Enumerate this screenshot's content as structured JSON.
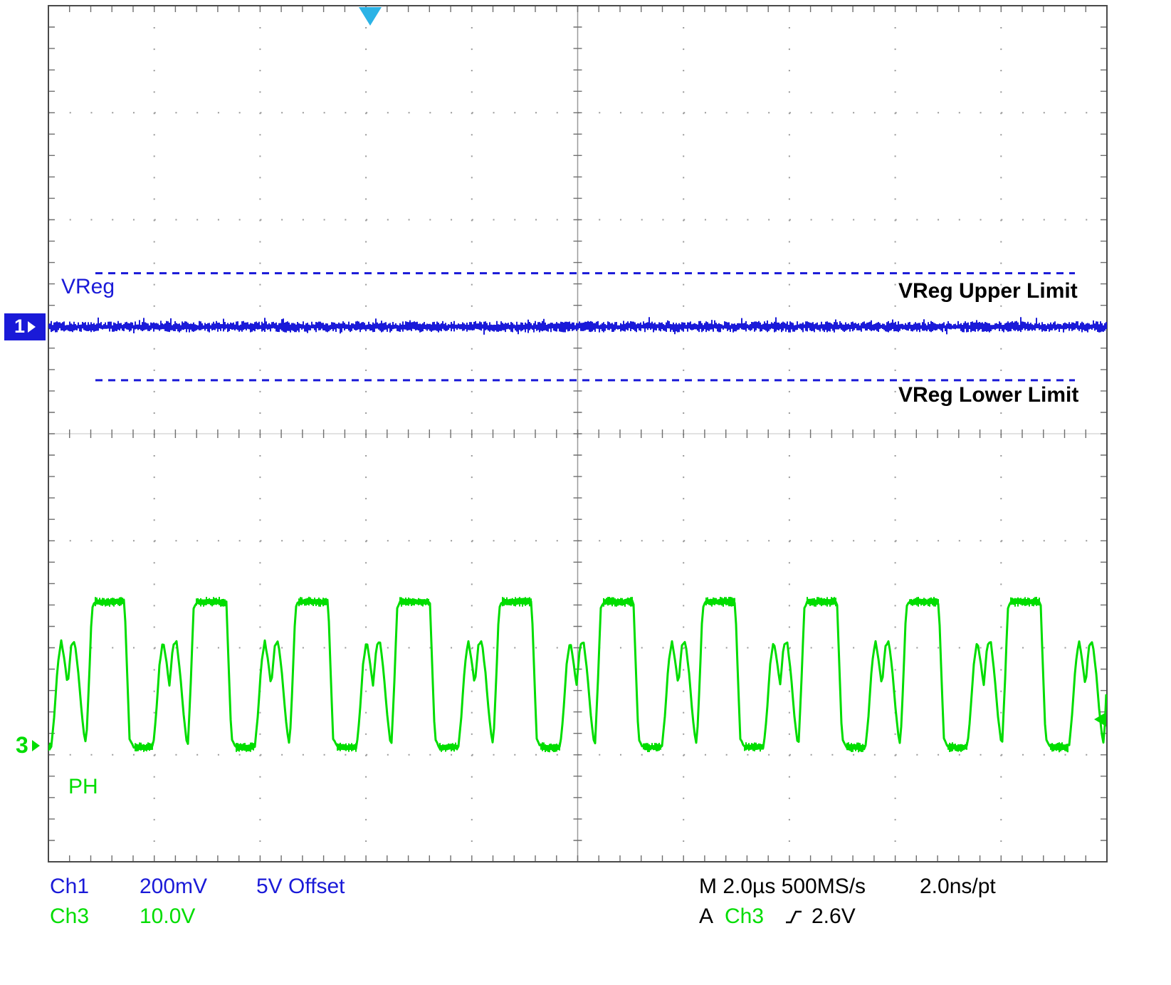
{
  "scope": {
    "annotations": {
      "vreg_trace_label": "VReg",
      "ph_trace_label": "PH",
      "upper_limit_label": "VReg Upper Limit",
      "lower_limit_label": "VReg Lower Limit"
    },
    "markers": {
      "ch1": "1",
      "ch3": "3"
    },
    "readout": {
      "ch1_name": "Ch1",
      "ch1_scale": "200mV",
      "ch1_offset": "5V Offset",
      "ch3_name": "Ch3",
      "ch3_scale": "10.0V",
      "timebase": "M 2.0µs 500MS/s",
      "resolution": "2.0ns/pt",
      "trigger_mode": "A",
      "trigger_source": "Ch3",
      "trigger_level": "2.6V"
    },
    "colors": {
      "ch1": "#1a1ad8",
      "ch3": "#00dd00",
      "limit_line": "#1a1ad8",
      "grid": "#9a9a9a",
      "trigger_marker": "#2bb3e6",
      "annotation_text": "#000000"
    }
  },
  "chart_data": {
    "type": "line",
    "title": "Oscilloscope capture: regulator output VReg (Ch1) with limit lines and switching node PH (Ch3)",
    "x": {
      "per_div": 2.0,
      "units": "µs/div",
      "divisions": 10,
      "sample_rate": "500MS/s",
      "resolution": "2.0ns/pt"
    },
    "y_divisions": 8,
    "grid": "dotted graticule, center crosshair with minor ticks",
    "series": [
      {
        "name": "VReg",
        "channel": 1,
        "color": "#1a1ad8",
        "mV_per_div": 200,
        "offset_V": 5,
        "level_div_from_top": 3.0,
        "noise_mV_pp": 16,
        "description": "flat regulated output, noisy band holding steady between limit lines"
      },
      {
        "name": "VReg Upper Limit",
        "style": "dashed",
        "color": "#1a1ad8",
        "level_div_from_top": 2.5
      },
      {
        "name": "VReg Lower Limit",
        "style": "dashed",
        "color": "#1a1ad8",
        "level_div_from_top": 3.5
      },
      {
        "name": "PH",
        "channel": 3,
        "color": "#00dd00",
        "V_per_div": 10,
        "zero_div_from_top": 6.93,
        "high_level_V": 13.6,
        "hump_peak_V": 10.0,
        "period_us": 1.923,
        "description": "repeating switching waveform: rounded double hump followed by flat-top pulse each period",
        "pattern_us_V": [
          [
            0.0,
            0
          ],
          [
            0.134,
            0
          ],
          [
            0.188,
            2.7
          ],
          [
            0.256,
            7.7
          ],
          [
            0.323,
            10.0
          ],
          [
            0.39,
            7.9
          ],
          [
            0.444,
            5.7
          ],
          [
            0.511,
            9.5
          ],
          [
            0.578,
            9.9
          ],
          [
            0.646,
            7.0
          ],
          [
            0.713,
            3.0
          ],
          [
            0.767,
            0.7
          ],
          [
            0.794,
            0.3
          ],
          [
            0.847,
            6.0
          ],
          [
            0.901,
            13.0
          ],
          [
            0.955,
            13.6
          ],
          [
            1.52,
            13.6
          ],
          [
            1.573,
            6.3
          ],
          [
            1.614,
            0.8
          ],
          [
            1.695,
            0
          ],
          [
            1.923,
            0
          ]
        ]
      }
    ],
    "trigger": {
      "mode": "A",
      "source": "Ch3",
      "slope": "rising",
      "level_V": 2.6,
      "position_div_from_left": 3.04
    }
  }
}
